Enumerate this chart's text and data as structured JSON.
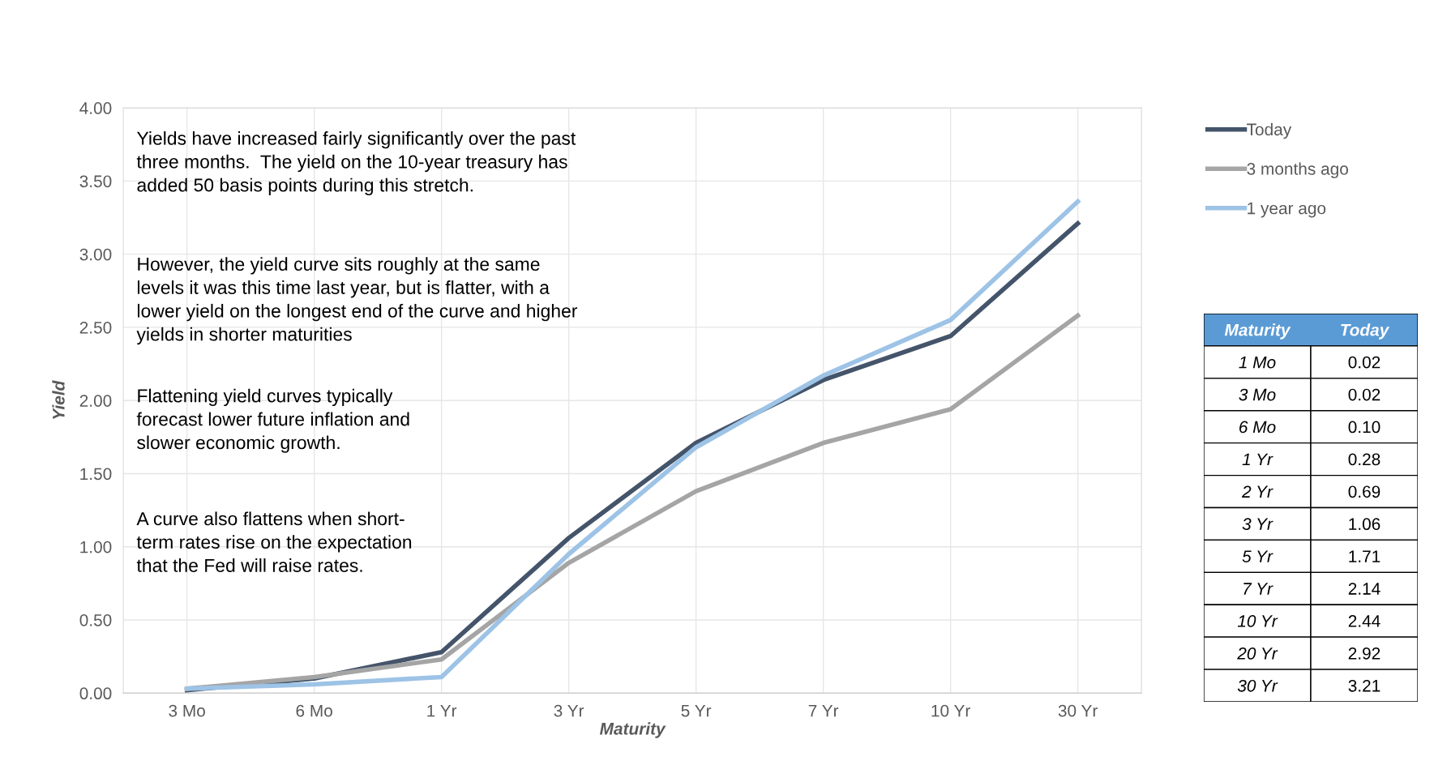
{
  "chart_data": [
    {
      "type": "line",
      "xlabel": "Maturity",
      "ylabel": "Yield",
      "categories": [
        "3 Mo",
        "6 Mo",
        "1 Yr",
        "3 Yr",
        "5 Yr",
        "7 Yr",
        "10 Yr",
        "30 Yr"
      ],
      "series": [
        {
          "name": "Today",
          "color": "#44546a",
          "values": [
            0.02,
            0.1,
            0.28,
            1.06,
            1.71,
            2.14,
            2.44,
            3.21
          ]
        },
        {
          "name": "3 months ago",
          "color": "#a5a5a5",
          "values": [
            0.03,
            0.11,
            0.23,
            0.89,
            1.38,
            1.71,
            1.94,
            2.58
          ]
        },
        {
          "name": "1 year ago",
          "color": "#9dc3e6",
          "values": [
            0.03,
            0.06,
            0.11,
            0.95,
            1.68,
            2.17,
            2.55,
            3.36
          ]
        }
      ],
      "ylim": [
        0,
        4
      ],
      "yticks": [
        {
          "value": 0,
          "label": "0.00"
        },
        {
          "value": 0.5,
          "label": "0.50"
        },
        {
          "value": 1,
          "label": "1.00"
        },
        {
          "value": 1.5,
          "label": "1.50"
        },
        {
          "value": 2,
          "label": "2.00"
        },
        {
          "value": 2.5,
          "label": "2.50"
        },
        {
          "value": 3,
          "label": "3.00"
        },
        {
          "value": 3.5,
          "label": "3.50"
        },
        {
          "value": 4,
          "label": "4.00"
        }
      ],
      "grid": true,
      "legend": "top right",
      "marker": "none",
      "line_style": "solid",
      "annotations": [
        "Yields have increased fairly significantly over the past\nthree months.  The yield on the 10-year treasury has\nadded 50 basis points during this stretch.",
        "However, the yield curve sits roughly at the same\nlevels it was this time last year, but is flatter, with a\nlower yield on the longest end of the curve and higher\nyields in shorter maturities",
        "Flattening yield curves typically\nforecast lower future inflation and\nslower economic growth.",
        "A curve also flattens when short-\nterm rates rise on the expectation\nthat the Fed will raise rates."
      ]
    },
    {
      "type": "other",
      "xlabel": "Maturity",
      "categories": [
        "1 Mo",
        "3 Mo",
        "6 Mo",
        "1 Yr",
        "2 Yr",
        "3 Yr",
        "5 Yr",
        "7 Yr",
        "10 Yr",
        "20 Yr",
        "30 Yr"
      ],
      "series": [
        {
          "name": "Today",
          "values": [
            0.02,
            0.02,
            0.1,
            0.28,
            0.69,
            1.06,
            1.71,
            2.14,
            2.44,
            2.92,
            3.21
          ],
          "value_labels": [
            "0.02",
            "0.02",
            "0.10",
            "0.28",
            "0.69",
            "1.06",
            "1.71",
            "2.14",
            "2.44",
            "2.92",
            "3.21"
          ]
        }
      ]
    }
  ]
}
